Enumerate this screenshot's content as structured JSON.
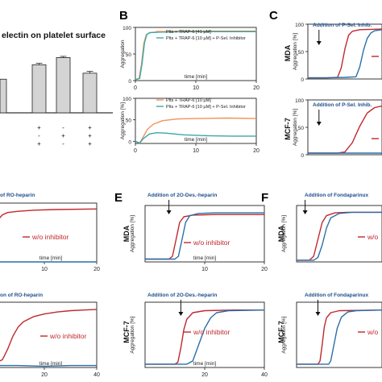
{
  "figure": {
    "partial_title": "electin on platelet surface",
    "panel_letters": [
      "B",
      "C",
      "E",
      "F"
    ]
  },
  "colors": {
    "red": "#c0282d",
    "blue": "#2a6fa8",
    "orange": "#f0935a",
    "teal": "#3aa8a8",
    "bar": "#d4d4d4",
    "text_blue": "#1f4e8c"
  },
  "chart_data": [
    {
      "id": "A",
      "type": "bar",
      "title": "electin on platelet surface",
      "values": [
        28,
        40,
        46,
        33
      ],
      "ylim": [
        0,
        55
      ],
      "error": [
        0,
        1.2,
        1.0,
        1.5
      ],
      "signs": [
        [
          "+",
          "+",
          "+"
        ],
        [
          "+",
          "-",
          "+"
        ],
        [
          "-",
          "+",
          "-"
        ],
        [
          "+",
          "+",
          "+"
        ]
      ],
      "grid": false
    },
    {
      "id": "B-top",
      "type": "line",
      "ylabel": "Aggregation",
      "xlabel": "time [min]",
      "yticks": [
        0,
        50,
        100
      ],
      "xticks": [
        0,
        10,
        20
      ],
      "xlim": [
        0,
        20
      ],
      "ylim": [
        0,
        100
      ],
      "legend_position": "top-right",
      "series": [
        {
          "name": "Plts + TRAP-6 [41 µM]",
          "color": "orange",
          "points": [
            [
              0,
              2
            ],
            [
              0.6,
              4
            ],
            [
              1.0,
              30
            ],
            [
              1.4,
              70
            ],
            [
              1.8,
              86
            ],
            [
              2.3,
              90
            ],
            [
              4,
              92
            ],
            [
              8,
              93
            ],
            [
              20,
              93
            ]
          ]
        },
        {
          "name": "Plts + TRAP-6 [10 µM] + P-Sel. Inhibitor",
          "color": "teal",
          "points": [
            [
              0,
              2
            ],
            [
              0.7,
              4
            ],
            [
              1.1,
              32
            ],
            [
              1.5,
              71
            ],
            [
              1.9,
              87
            ],
            [
              2.4,
              90
            ],
            [
              4,
              91
            ],
            [
              8,
              92
            ],
            [
              20,
              92
            ]
          ]
        }
      ]
    },
    {
      "id": "B-bottom",
      "type": "line",
      "ylabel": "Aggregation [%]",
      "xlabel": "time [min]",
      "yticks": [
        0,
        50,
        100
      ],
      "xticks": [
        0,
        10,
        20
      ],
      "xlim": [
        0,
        20
      ],
      "ylim": [
        -5,
        100
      ],
      "legend_position": "top-right",
      "series": [
        {
          "name": "Plts + TRAP-6 [10 µM]",
          "color": "orange",
          "points": [
            [
              0,
              0
            ],
            [
              0.7,
              -4
            ],
            [
              1.2,
              8
            ],
            [
              2,
              28
            ],
            [
              3,
              40
            ],
            [
              4.5,
              48
            ],
            [
              7,
              52
            ],
            [
              10,
              53
            ],
            [
              15,
              54
            ],
            [
              20,
              53
            ]
          ]
        },
        {
          "name": "Plts + TRAP-6 [10 µM] + P-Sel. Inhibitor",
          "color": "teal",
          "points": [
            [
              0,
              0
            ],
            [
              0.7,
              -4
            ],
            [
              1.3,
              6
            ],
            [
              2.3,
              17
            ],
            [
              3.5,
              20
            ],
            [
              5,
              19
            ],
            [
              8,
              15
            ],
            [
              12,
              13
            ],
            [
              16,
              12
            ],
            [
              20,
              12
            ]
          ]
        }
      ]
    },
    {
      "id": "C-top",
      "type": "line",
      "ylabel": "Aggregation [%]",
      "row_label": "MDA",
      "yticks": [
        0,
        50,
        100
      ],
      "xlim": [
        0,
        20
      ],
      "ylim": [
        0,
        100
      ],
      "annotation": "Addition of P-Sel. Inhib.",
      "arrow_x": 3,
      "series": [
        {
          "color": "red",
          "points": [
            [
              0,
              2
            ],
            [
              5,
              2
            ],
            [
              8,
              3
            ],
            [
              9,
              20
            ],
            [
              10,
              55
            ],
            [
              11,
              80
            ],
            [
              12,
              87
            ],
            [
              14,
              90
            ],
            [
              20,
              91
            ]
          ]
        },
        {
          "color": "blue",
          "points": [
            [
              0,
              2
            ],
            [
              5,
              2
            ],
            [
              10,
              3
            ],
            [
              13,
              4
            ],
            [
              14,
              22
            ],
            [
              15,
              52
            ],
            [
              16,
              74
            ],
            [
              17,
              84
            ],
            [
              18,
              88
            ],
            [
              20,
              90
            ]
          ]
        }
      ]
    },
    {
      "id": "C-bottom",
      "type": "line",
      "ylabel": "Aggregation [%]",
      "row_label": "MCF-7",
      "yticks": [
        0,
        50,
        100
      ],
      "xlim": [
        0,
        20
      ],
      "ylim": [
        0,
        100
      ],
      "annotation": "Addition of P-Sel. Inhib.",
      "arrow_x": 3,
      "series": [
        {
          "color": "red",
          "points": [
            [
              0,
              3
            ],
            [
              8,
              3
            ],
            [
              10,
              5
            ],
            [
              12,
              22
            ],
            [
              14,
              52
            ],
            [
              16,
              76
            ],
            [
              18,
              86
            ],
            [
              20,
              89
            ]
          ]
        },
        {
          "color": "blue",
          "points": [
            [
              0,
              3
            ],
            [
              20,
              3
            ]
          ]
        }
      ]
    },
    {
      "id": "D-top",
      "type": "line",
      "xlabel": "time [min]",
      "xticks": [
        10,
        20
      ],
      "xlim": [
        0,
        20
      ],
      "ylim": [
        0,
        100
      ],
      "annotation": "of RO-heparin",
      "series": [
        {
          "name": "w/o inhibitor",
          "color": "red",
          "points": [
            [
              0,
              45
            ],
            [
              0.6,
              60
            ],
            [
              1.2,
              72
            ],
            [
              2,
              80
            ],
            [
              3,
              84
            ],
            [
              5,
              86
            ],
            [
              8,
              88
            ],
            [
              12,
              89
            ],
            [
              20,
              90
            ]
          ]
        },
        {
          "color": "blue",
          "points": [
            [
              0,
              0
            ],
            [
              20,
              0
            ]
          ]
        }
      ]
    },
    {
      "id": "D-bottom",
      "type": "line",
      "xlabel": "time [min]",
      "xticks": [
        20,
        40
      ],
      "xlim": [
        0,
        40
      ],
      "ylim": [
        0,
        100
      ],
      "annotation": "on of RO-heparin",
      "arrow_x": 1,
      "series": [
        {
          "name": "w/o inhibitor",
          "color": "red",
          "points": [
            [
              0,
              8
            ],
            [
              2,
              8
            ],
            [
              4,
              12
            ],
            [
              6,
              28
            ],
            [
              8,
              48
            ],
            [
              10,
              62
            ],
            [
              12,
              70
            ],
            [
              16,
              78
            ],
            [
              20,
              82
            ],
            [
              25,
              85
            ],
            [
              30,
              87
            ],
            [
              35,
              88
            ],
            [
              40,
              89
            ]
          ]
        },
        {
          "color": "blue",
          "points": [
            [
              0,
              3
            ],
            [
              10,
              3
            ],
            [
              20,
              2
            ],
            [
              30,
              3
            ],
            [
              40,
              3
            ]
          ]
        }
      ]
    },
    {
      "id": "E-top",
      "type": "line",
      "ylabel": "Aggregation [%]",
      "row_label": "MDA",
      "xlabel": "time [min]",
      "xticks": [
        10,
        20
      ],
      "xlim": [
        0,
        20
      ],
      "ylim": [
        0,
        100
      ],
      "annotation": "Addition of 2O-Des.-heparin",
      "arrow_x": 4,
      "series": [
        {
          "name": "w/o inhibitor",
          "color": "red",
          "points": [
            [
              0,
              5
            ],
            [
              4,
              5
            ],
            [
              4.6,
              10
            ],
            [
              5.2,
              40
            ],
            [
              5.8,
              70
            ],
            [
              6.5,
              80
            ],
            [
              8,
              83
            ],
            [
              12,
              84
            ],
            [
              20,
              84
            ]
          ]
        },
        {
          "color": "blue",
          "points": [
            [
              0,
              5
            ],
            [
              5,
              5
            ],
            [
              5.6,
              10
            ],
            [
              6.2,
              40
            ],
            [
              6.8,
              70
            ],
            [
              7.5,
              82
            ],
            [
              9,
              86
            ],
            [
              12,
              87
            ],
            [
              20,
              87
            ]
          ]
        }
      ]
    },
    {
      "id": "E-bottom",
      "type": "line",
      "ylabel": "Aggregation [%]",
      "row_label": "MCF-7",
      "xlabel": "time [min]",
      "xticks": [
        20,
        40
      ],
      "xlim": [
        0,
        40
      ],
      "ylim": [
        0,
        100
      ],
      "annotation": "Addition of 2O-Des.-heparin",
      "arrow_x": 12,
      "series": [
        {
          "name": "w/o inhibitor",
          "color": "red",
          "points": [
            [
              0,
              5
            ],
            [
              10,
              5
            ],
            [
              11,
              8
            ],
            [
              12,
              30
            ],
            [
              13,
              58
            ],
            [
              14,
              74
            ],
            [
              16,
              84
            ],
            [
              20,
              87
            ],
            [
              30,
              88
            ],
            [
              40,
              88
            ]
          ]
        },
        {
          "color": "blue",
          "points": [
            [
              0,
              5
            ],
            [
              14,
              5
            ],
            [
              16,
              10
            ],
            [
              18,
              35
            ],
            [
              20,
              60
            ],
            [
              22,
              76
            ],
            [
              24,
              84
            ],
            [
              28,
              87
            ],
            [
              40,
              88
            ]
          ]
        }
      ]
    },
    {
      "id": "F-top",
      "type": "line",
      "ylabel": "Aggregation [%]",
      "row_label": "MDA",
      "xlim": [
        0,
        20
      ],
      "ylim": [
        0,
        100
      ],
      "annotation": "Addition of Fondaparinux",
      "arrow_x": 2,
      "series": [
        {
          "name": "w/o",
          "color": "red",
          "points": [
            [
              0,
              3
            ],
            [
              3,
              3
            ],
            [
              4,
              10
            ],
            [
              5,
              40
            ],
            [
              6,
              70
            ],
            [
              7,
              82
            ],
            [
              9,
              87
            ],
            [
              12,
              88
            ],
            [
              20,
              88
            ]
          ]
        },
        {
          "color": "blue",
          "points": [
            [
              0,
              3
            ],
            [
              4,
              3
            ],
            [
              5,
              8
            ],
            [
              6,
              30
            ],
            [
              7,
              60
            ],
            [
              8,
              78
            ],
            [
              10,
              86
            ],
            [
              13,
              88
            ],
            [
              20,
              88
            ]
          ]
        }
      ]
    },
    {
      "id": "F-bottom",
      "type": "line",
      "ylabel": "Aggregation [%]",
      "row_label": "MCF-7",
      "xlim": [
        0,
        40
      ],
      "ylim": [
        0,
        100
      ],
      "annotation": "Addition of Fondaparinux",
      "arrow_x": 10,
      "series": [
        {
          "name": "w/o",
          "color": "red",
          "points": [
            [
              0,
              5
            ],
            [
              10,
              5
            ],
            [
              11,
              10
            ],
            [
              12,
              35
            ],
            [
              13,
              62
            ],
            [
              14,
              76
            ],
            [
              16,
              84
            ],
            [
              20,
              87
            ],
            [
              40,
              88
            ]
          ]
        },
        {
          "color": "blue",
          "points": [
            [
              0,
              5
            ],
            [
              15,
              5
            ],
            [
              16,
              10
            ],
            [
              17.5,
              35
            ],
            [
              19,
              60
            ],
            [
              21,
              77
            ],
            [
              24,
              85
            ],
            [
              28,
              87
            ],
            [
              40,
              88
            ]
          ]
        }
      ]
    }
  ]
}
